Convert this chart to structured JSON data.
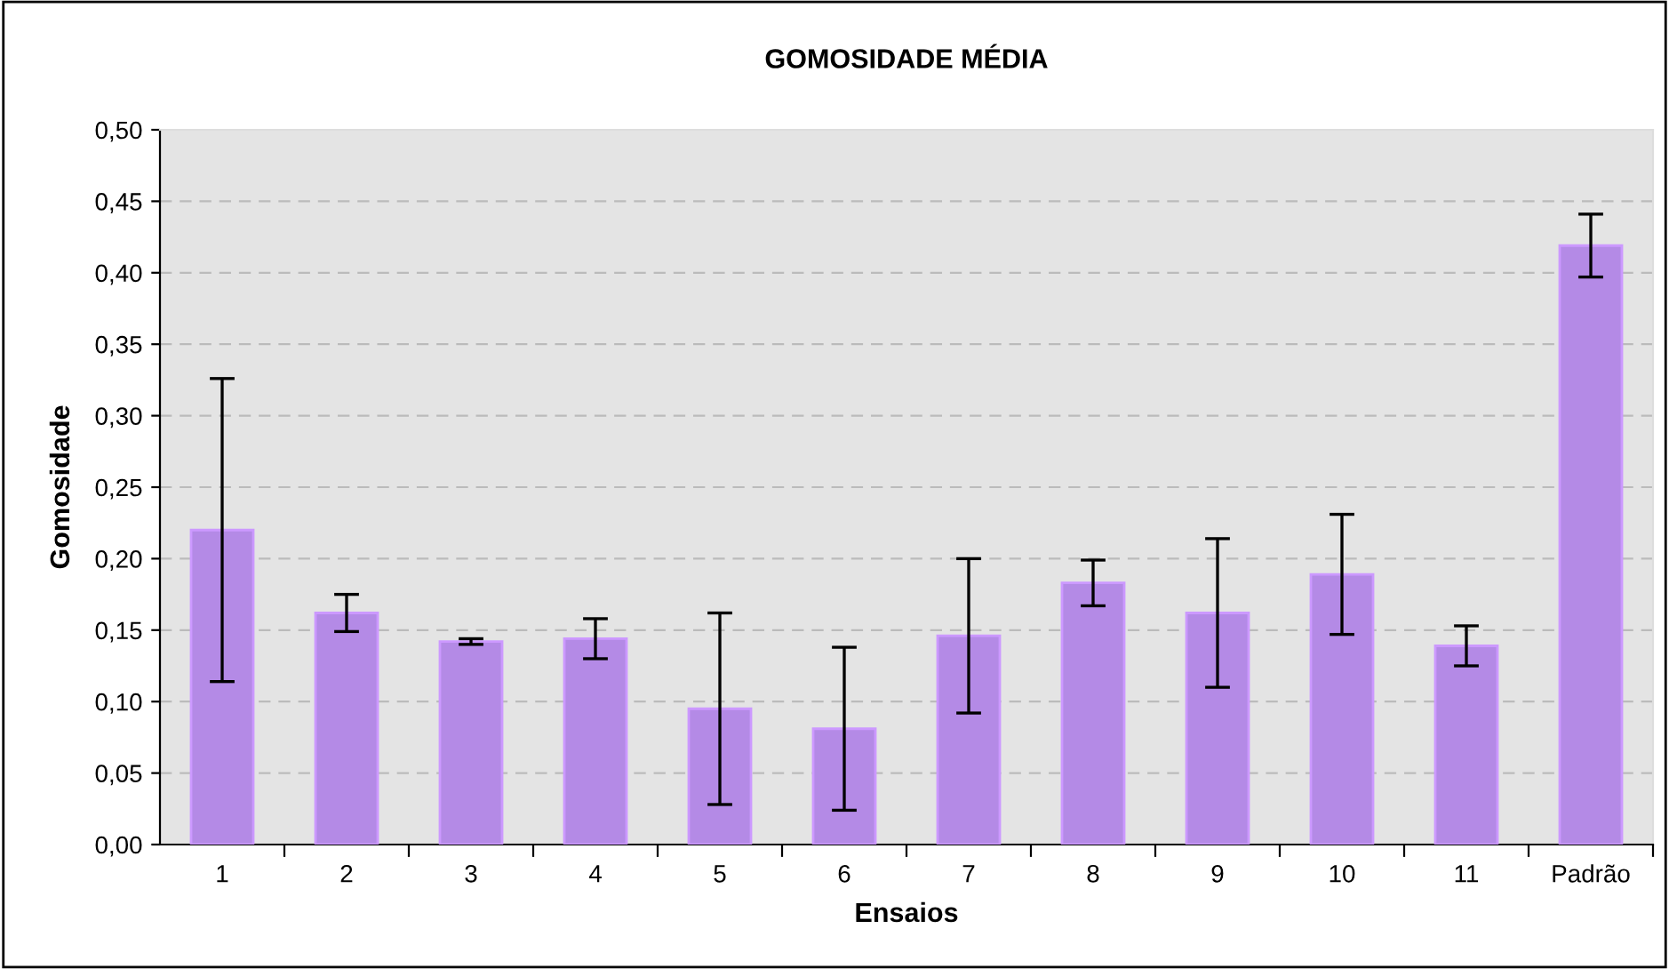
{
  "chart_data": {
    "type": "bar",
    "title": "GOMOSIDADE MÉDIA",
    "xlabel": "Ensaios",
    "ylabel": "Gomosidade",
    "categories": [
      "1",
      "2",
      "3",
      "4",
      "5",
      "6",
      "7",
      "8",
      "9",
      "10",
      "11",
      "Padrão"
    ],
    "values": [
      0.22,
      0.162,
      0.142,
      0.144,
      0.095,
      0.081,
      0.146,
      0.183,
      0.162,
      0.189,
      0.139,
      0.419
    ],
    "errors": [
      0.106,
      0.013,
      0.002,
      0.014,
      0.067,
      0.057,
      0.054,
      0.016,
      0.052,
      0.042,
      0.014,
      0.022
    ],
    "color": "#b48ae6",
    "ylim": [
      0,
      0.5
    ],
    "yticks": [
      {
        "value": 0,
        "label": "0,00"
      },
      {
        "value": 0.05,
        "label": "0,05"
      },
      {
        "value": 0.1,
        "label": "0,10"
      },
      {
        "value": 0.15,
        "label": "0,15"
      },
      {
        "value": 0.2,
        "label": "0,20"
      },
      {
        "value": 0.25,
        "label": "0,25"
      },
      {
        "value": 0.3,
        "label": "0,30"
      },
      {
        "value": 0.35,
        "label": "0,35"
      },
      {
        "value": 0.4,
        "label": "0,40"
      },
      {
        "value": 0.45,
        "label": "0,45"
      },
      {
        "value": 0.5,
        "label": "0,50"
      }
    ],
    "grid": "y"
  }
}
